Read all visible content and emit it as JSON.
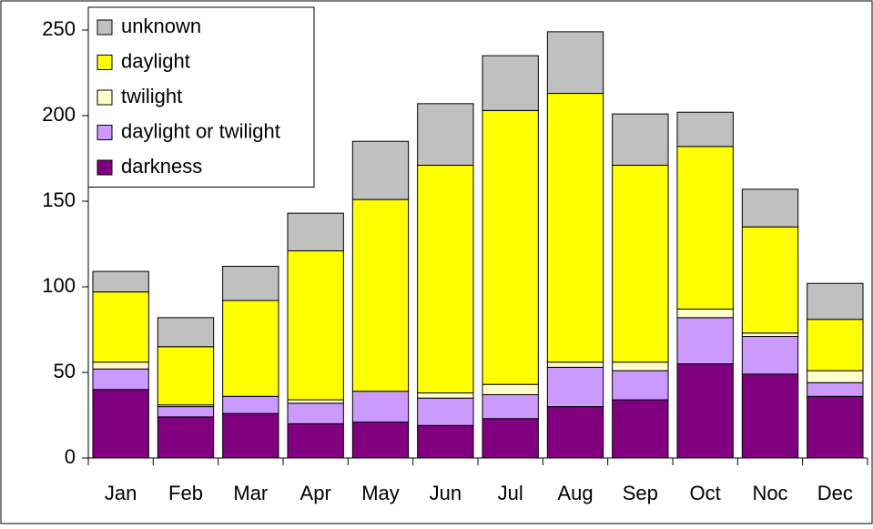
{
  "chart_data": {
    "type": "bar",
    "stacked": true,
    "categories": [
      "Jan",
      "Feb",
      "Mar",
      "Apr",
      "May",
      "Jun",
      "Jul",
      "Aug",
      "Sep",
      "Oct",
      "Noc",
      "Dec"
    ],
    "series": [
      {
        "name": "darkness",
        "color": "#800080",
        "values": [
          40,
          24,
          26,
          20,
          21,
          19,
          23,
          30,
          34,
          55,
          49,
          36
        ]
      },
      {
        "name": "daylight or twilight",
        "color": "#cc99ff",
        "values": [
          12,
          6,
          10,
          12,
          18,
          16,
          14,
          23,
          17,
          27,
          22,
          8
        ]
      },
      {
        "name": "twilight",
        "color": "#ffffcc",
        "values": [
          4,
          1,
          0,
          2,
          0,
          3,
          6,
          3,
          5,
          5,
          2,
          7
        ]
      },
      {
        "name": "daylight",
        "color": "#ffff00",
        "values": [
          41,
          34,
          56,
          87,
          112,
          133,
          160,
          157,
          115,
          95,
          62,
          30
        ]
      },
      {
        "name": "unknown",
        "color": "#c0c0c0",
        "values": [
          12,
          17,
          20,
          22,
          34,
          36,
          32,
          36,
          30,
          20,
          22,
          21
        ]
      }
    ],
    "ylim": [
      0,
      250
    ],
    "yticks": [
      0,
      50,
      100,
      150,
      200,
      250
    ],
    "grid": false,
    "legend": "top-left"
  }
}
